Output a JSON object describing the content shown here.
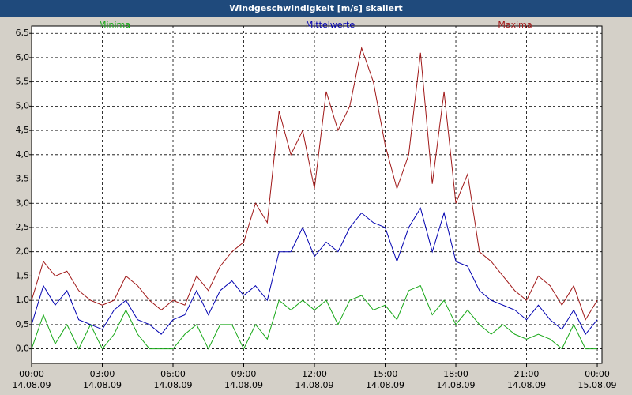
{
  "chart_data": {
    "type": "line",
    "title": "Windgeschwindigkeit [m/s] skaliert",
    "x": [
      0,
      0.5,
      1,
      1.5,
      2,
      2.5,
      3,
      3.5,
      4,
      4.5,
      5,
      5.5,
      6,
      6.5,
      7,
      7.5,
      8,
      8.5,
      9,
      9.5,
      10,
      10.5,
      11,
      11.5,
      12,
      12.5,
      13,
      13.5,
      14,
      14.5,
      15,
      15.5,
      16,
      16.5,
      17,
      17.5,
      18,
      18.5,
      19,
      19.5,
      20,
      20.5,
      21,
      21.5,
      22,
      22.5,
      23,
      23.5,
      24
    ],
    "series": [
      {
        "name": "Minima",
        "color": "#18a818",
        "values": [
          0.0,
          0.7,
          0.1,
          0.5,
          0.0,
          0.5,
          0.0,
          0.3,
          0.8,
          0.3,
          0.0,
          0.0,
          0.0,
          0.3,
          0.5,
          0.0,
          0.5,
          0.5,
          0.0,
          0.5,
          0.2,
          1.0,
          0.8,
          1.0,
          0.8,
          1.0,
          0.5,
          1.0,
          1.1,
          0.8,
          0.9,
          0.6,
          1.2,
          1.3,
          0.7,
          1.0,
          0.5,
          0.8,
          0.5,
          0.3,
          0.5,
          0.3,
          0.2,
          0.3,
          0.2,
          0.0,
          0.5,
          0.0,
          0.0
        ]
      },
      {
        "name": "Mittelwerte",
        "color": "#0000b0",
        "values": [
          0.5,
          1.3,
          0.9,
          1.2,
          0.6,
          0.5,
          0.4,
          0.8,
          1.0,
          0.6,
          0.5,
          0.3,
          0.6,
          0.7,
          1.2,
          0.7,
          1.2,
          1.4,
          1.1,
          1.3,
          1.0,
          2.0,
          2.0,
          2.5,
          1.9,
          2.2,
          2.0,
          2.5,
          2.8,
          2.6,
          2.5,
          1.8,
          2.5,
          2.9,
          2.0,
          2.8,
          1.8,
          1.7,
          1.2,
          1.0,
          0.9,
          0.8,
          0.6,
          0.9,
          0.6,
          0.4,
          0.8,
          0.3,
          0.6
        ]
      },
      {
        "name": "Maxima",
        "color": "#a01818",
        "values": [
          1.0,
          1.8,
          1.5,
          1.6,
          1.2,
          1.0,
          0.9,
          1.0,
          1.5,
          1.3,
          1.0,
          0.8,
          1.0,
          0.9,
          1.5,
          1.2,
          1.7,
          2.0,
          2.2,
          3.0,
          2.6,
          4.9,
          4.0,
          4.5,
          3.3,
          5.3,
          4.5,
          5.0,
          6.2,
          5.5,
          4.2,
          3.3,
          4.0,
          6.1,
          3.4,
          5.3,
          3.0,
          3.6,
          2.0,
          1.8,
          1.5,
          1.2,
          1.0,
          1.5,
          1.3,
          0.9,
          1.3,
          0.6,
          1.0
        ]
      }
    ],
    "xlim": [
      0,
      24.2
    ],
    "xticks": [
      {
        "value": 0,
        "label": "00:00 14.08.09"
      },
      {
        "value": 3,
        "label": "03:00 14.08.09"
      },
      {
        "value": 6,
        "label": "06:00 14.08.09"
      },
      {
        "value": 9,
        "label": "09:00 14.08.09"
      },
      {
        "value": 12,
        "label": "12:00 14.08.09"
      },
      {
        "value": 15,
        "label": "15:00 14.08.09"
      },
      {
        "value": 18,
        "label": "18:00 14.08.09"
      },
      {
        "value": 21,
        "label": "21:00 14.08.09"
      },
      {
        "value": 24,
        "label": "00:00 15.08.09"
      }
    ],
    "ylim": [
      -0.3,
      6.65
    ],
    "yticks": [
      {
        "value": 0,
        "label": "0,0"
      },
      {
        "value": 0.5,
        "label": "0,5"
      },
      {
        "value": 1,
        "label": "1,0"
      },
      {
        "value": 1.5,
        "label": "1,5"
      },
      {
        "value": 2,
        "label": "2,0"
      },
      {
        "value": 2.5,
        "label": "2,5"
      },
      {
        "value": 3,
        "label": "3,0"
      },
      {
        "value": 3.5,
        "label": "3,5"
      },
      {
        "value": 4,
        "label": "4,0"
      },
      {
        "value": 4.5,
        "label": "4,5"
      },
      {
        "value": 5,
        "label": "5,0"
      },
      {
        "value": 5.5,
        "label": "5,5"
      },
      {
        "value": 6,
        "label": "6,0"
      },
      {
        "value": 6.5,
        "label": "6,5"
      }
    ],
    "grid": true
  }
}
